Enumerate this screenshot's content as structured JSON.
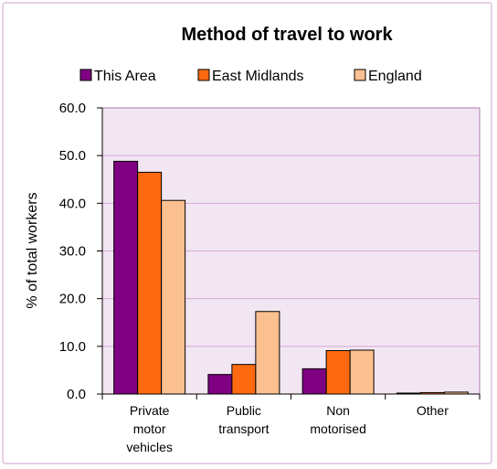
{
  "chart_data": {
    "type": "bar",
    "title": "Method of travel to work",
    "ylabel": "% of total workers",
    "xlabel": "",
    "ylim": [
      0,
      60
    ],
    "yticks": [
      "0.0",
      "10.0",
      "20.0",
      "30.0",
      "40.0",
      "50.0",
      "60.0"
    ],
    "categories": [
      [
        "Private",
        "motor",
        "vehicles"
      ],
      [
        "Public",
        "transport"
      ],
      [
        "Non",
        "motorised"
      ],
      [
        "Other"
      ]
    ],
    "series": [
      {
        "name": "This Area",
        "color": "#7f0080",
        "values": [
          48.8,
          4.1,
          5.3,
          0.2
        ]
      },
      {
        "name": "East Midlands",
        "color": "#ff6a10",
        "values": [
          46.5,
          6.2,
          9.1,
          0.3
        ]
      },
      {
        "name": "England",
        "color": "#fac090",
        "values": [
          40.6,
          17.3,
          9.2,
          0.4
        ]
      }
    ],
    "legend_position": "top",
    "grid": true,
    "plot_background": "#f2e6f2",
    "grid_color": "#d9a8d9"
  }
}
